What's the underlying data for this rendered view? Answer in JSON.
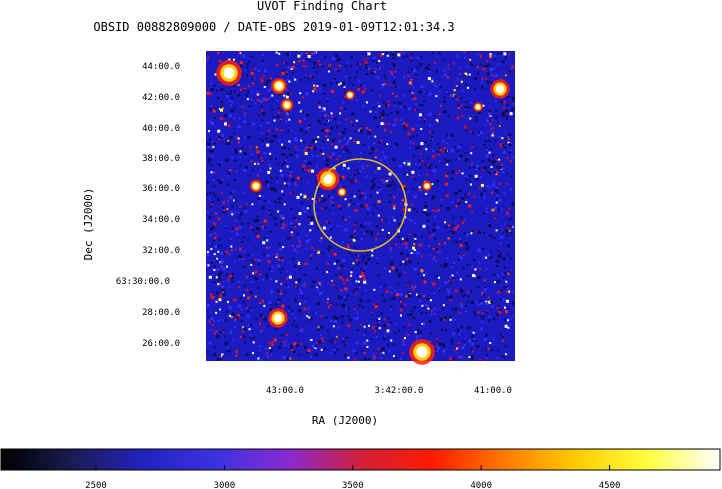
{
  "chart_data": {
    "type": "heatmap",
    "title": "UVOT Finding Chart",
    "subtitle": "OBSID 00882809000 / DATE-OBS 2019-01-09T12:01:34.3",
    "xlabel": "RA (J2000)",
    "ylabel": "Dec (J2000)",
    "x_ticks": [
      "43:00.0",
      "3:42:00.0",
      "41:00.0"
    ],
    "y_ticks": [
      "44:00.0",
      "42:00.0",
      "40:00.0",
      "38:00.0",
      "36:00.0",
      "34:00.0",
      "32:00.0",
      "63:30:00.0",
      "28:00.0",
      "26:00.0"
    ],
    "colorbar": {
      "ticks": [
        2500,
        3000,
        3500,
        4000,
        4500
      ],
      "range": [
        2130,
        4930
      ],
      "colors": [
        "#000000",
        "#1b1b55",
        "#2222c0",
        "#3a32e0",
        "#8a2ad0",
        "#d0203a",
        "#ff1a00",
        "#ff7a00",
        "#ffcc00",
        "#ffff40",
        "#ffffff"
      ]
    },
    "overlay": {
      "shape": "circle",
      "color": "#e8c020"
    },
    "colors": {
      "background": "#1a1ac0",
      "noise": "#2424e0"
    }
  }
}
